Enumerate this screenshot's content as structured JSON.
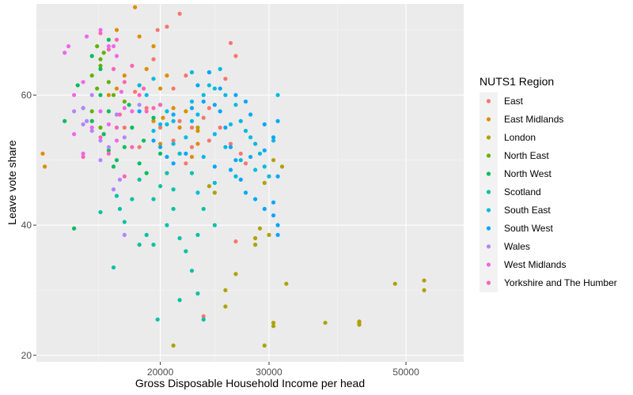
{
  "chart_data": {
    "type": "scatter",
    "xlabel": "Gross Disposable Household Income per head",
    "ylabel": "Leave vote share",
    "x_scale": "log",
    "xlim": [
      12600,
      62000
    ],
    "ylim": [
      19,
      74
    ],
    "x_ticks": [
      {
        "value": 20000,
        "label": "20000"
      },
      {
        "value": 30000,
        "label": "30000"
      },
      {
        "value": 50000,
        "label": "50000"
      }
    ],
    "y_ticks": [
      {
        "value": 20,
        "label": "20"
      },
      {
        "value": 40,
        "label": "40"
      },
      {
        "value": 60,
        "label": "60"
      }
    ],
    "grid": true,
    "legend_title": "NUTS1 Region",
    "legend_position": "right",
    "series": [
      {
        "name": "East",
        "color": "#F8766D",
        "points": [
          [
            19800,
            70.0
          ],
          [
            20500,
            70.5
          ],
          [
            21500,
            72.5
          ],
          [
            26000,
            68.0
          ],
          [
            26500,
            66.0
          ],
          [
            25500,
            62.5
          ],
          [
            22000,
            63.0
          ],
          [
            19500,
            65.5
          ],
          [
            21000,
            61.0
          ],
          [
            21500,
            56.0
          ],
          [
            22500,
            55.0
          ],
          [
            24000,
            58.0
          ],
          [
            25000,
            55.0
          ],
          [
            26000,
            52.5
          ],
          [
            27000,
            51.0
          ],
          [
            27500,
            49.5
          ],
          [
            24000,
            53.0
          ],
          [
            22500,
            52.0
          ],
          [
            21000,
            53.0
          ],
          [
            20000,
            55.0
          ],
          [
            19000,
            58.0
          ],
          [
            18200,
            60.5
          ],
          [
            23500,
            56.5
          ],
          [
            22000,
            49.5
          ],
          [
            18500,
            52.0
          ],
          [
            17500,
            55.0
          ],
          [
            23500,
            26.0
          ],
          [
            26500,
            37.5
          ]
        ]
      },
      {
        "name": "East Midlands",
        "color": "#DB8E00",
        "points": [
          [
            18100,
            75.5
          ],
          [
            18200,
            73.5
          ],
          [
            17000,
            70.0
          ],
          [
            18500,
            69.0
          ],
          [
            19500,
            67.5
          ],
          [
            19000,
            64.0
          ],
          [
            17500,
            63.0
          ],
          [
            16500,
            60.0
          ],
          [
            20000,
            61.0
          ],
          [
            20500,
            63.0
          ],
          [
            21000,
            58.0
          ],
          [
            20200,
            56.5
          ],
          [
            22000,
            57.5
          ],
          [
            21500,
            55.0
          ],
          [
            23000,
            54.5
          ],
          [
            18500,
            61.5
          ],
          [
            17000,
            61.0
          ],
          [
            12900,
            51.0
          ],
          [
            13000,
            49.0
          ],
          [
            19500,
            56.0
          ],
          [
            20000,
            52.5
          ],
          [
            21500,
            51.0
          ],
          [
            22500,
            50.5
          ],
          [
            23000,
            52.5
          ]
        ]
      },
      {
        "name": "London",
        "color": "#AEA200",
        "points": [
          [
            28500,
            37.0
          ],
          [
            29000,
            39.5
          ],
          [
            28500,
            38.0
          ],
          [
            30000,
            38.5
          ],
          [
            31500,
            49.0
          ],
          [
            30500,
            50.0
          ],
          [
            29500,
            46.5
          ],
          [
            24000,
            46.0
          ],
          [
            24500,
            45.0
          ],
          [
            25500,
            30.0
          ],
          [
            26500,
            32.5
          ],
          [
            25500,
            27.5
          ],
          [
            32000,
            31.0
          ],
          [
            30500,
            25.0
          ],
          [
            30500,
            24.5
          ],
          [
            29500,
            21.5
          ],
          [
            21000,
            21.5
          ],
          [
            37000,
            25.0
          ],
          [
            42000,
            25.0
          ],
          [
            42000,
            24.7
          ],
          [
            42000,
            25.2
          ],
          [
            48000,
            31.0
          ],
          [
            53500,
            31.5
          ],
          [
            53500,
            30.0
          ],
          [
            24000,
            63.5
          ],
          [
            23000,
            55.0
          ]
        ]
      },
      {
        "name": "North East",
        "color": "#64B200",
        "points": [
          [
            15800,
            67.5
          ],
          [
            16000,
            65.5
          ],
          [
            16200,
            66.5
          ],
          [
            15500,
            63.0
          ],
          [
            15800,
            61.0
          ],
          [
            16500,
            62.0
          ],
          [
            16800,
            60.0
          ],
          [
            17500,
            59.0
          ],
          [
            17000,
            57.0
          ],
          [
            16000,
            55.0
          ],
          [
            15500,
            57.5
          ],
          [
            16000,
            64.5
          ]
        ]
      },
      {
        "name": "North West",
        "color": "#00BD5C",
        "points": [
          [
            15500,
            66.0
          ],
          [
            16000,
            64.0
          ],
          [
            16500,
            68.5
          ],
          [
            15000,
            58.0
          ],
          [
            15500,
            56.0
          ],
          [
            16200,
            54.0
          ],
          [
            16500,
            51.5
          ],
          [
            17000,
            50.0
          ],
          [
            18000,
            55.0
          ],
          [
            17500,
            52.0
          ],
          [
            18500,
            49.5
          ],
          [
            19000,
            48.0
          ],
          [
            16800,
            49.0
          ],
          [
            14700,
            61.5
          ],
          [
            14000,
            56.0
          ],
          [
            14500,
            39.5
          ],
          [
            16500,
            57.5
          ],
          [
            17800,
            58.5
          ],
          [
            19500,
            56.5
          ],
          [
            20000,
            51.0
          ],
          [
            18800,
            53.0
          ],
          [
            16000,
            60.0
          ]
        ]
      },
      {
        "name": "Scotland",
        "color": "#00C1A7",
        "points": [
          [
            17000,
            44.5
          ],
          [
            17200,
            42.5
          ],
          [
            17500,
            40.5
          ],
          [
            18000,
            44.0
          ],
          [
            18500,
            47.0
          ],
          [
            19000,
            38.5
          ],
          [
            18500,
            37.0
          ],
          [
            19500,
            37.0
          ],
          [
            20500,
            40.0
          ],
          [
            21000,
            42.5
          ],
          [
            21500,
            38.0
          ],
          [
            22000,
            36.0
          ],
          [
            22500,
            33.0
          ],
          [
            19800,
            25.5
          ],
          [
            21500,
            28.5
          ],
          [
            23000,
            29.5
          ],
          [
            23500,
            25.5
          ],
          [
            16800,
            33.5
          ],
          [
            16000,
            42.0
          ],
          [
            20000,
            46.0
          ],
          [
            22500,
            48.0
          ],
          [
            23500,
            42.5
          ],
          [
            21000,
            45.5
          ],
          [
            19500,
            44.0
          ],
          [
            23000,
            38.5
          ],
          [
            24500,
            40.0
          ],
          [
            20500,
            48.0
          ]
        ]
      },
      {
        "name": "South East",
        "color": "#00BADE",
        "points": [
          [
            19500,
            54.5
          ],
          [
            20000,
            55.5
          ],
          [
            20500,
            57.5
          ],
          [
            21000,
            52.5
          ],
          [
            21500,
            51.0
          ],
          [
            22500,
            56.0
          ],
          [
            23000,
            57.0
          ],
          [
            22500,
            59.0
          ],
          [
            23500,
            60.0
          ],
          [
            24000,
            61.5
          ],
          [
            24500,
            61.0
          ],
          [
            25000,
            64.0
          ],
          [
            25500,
            60.0
          ],
          [
            26000,
            55.5
          ],
          [
            26500,
            58.5
          ],
          [
            27000,
            56.0
          ],
          [
            27500,
            54.5
          ],
          [
            28000,
            53.5
          ],
          [
            28500,
            52.5
          ],
          [
            29000,
            51.0
          ],
          [
            29500,
            49.0
          ],
          [
            30000,
            47.5
          ],
          [
            30500,
            53.0
          ],
          [
            31000,
            60.0
          ],
          [
            24500,
            54.0
          ],
          [
            23500,
            50.5
          ],
          [
            22000,
            53.5
          ],
          [
            21000,
            56.0
          ],
          [
            20000,
            58.5
          ],
          [
            19000,
            60.0
          ],
          [
            18500,
            61.5
          ],
          [
            19500,
            62.5
          ],
          [
            22500,
            63.5
          ],
          [
            25500,
            52.0
          ],
          [
            27000,
            50.0
          ],
          [
            28500,
            48.5
          ],
          [
            26500,
            47.5
          ],
          [
            24500,
            46.5
          ],
          [
            23000,
            45.0
          ],
          [
            20500,
            55.5
          ]
        ]
      },
      {
        "name": "South West",
        "color": "#00A6FF",
        "points": [
          [
            24000,
            63.5
          ],
          [
            24500,
            58.5
          ],
          [
            25000,
            57.5
          ],
          [
            25500,
            55.0
          ],
          [
            26000,
            52.0
          ],
          [
            26500,
            50.0
          ],
          [
            27000,
            47.0
          ],
          [
            27500,
            45.0
          ],
          [
            28500,
            44.0
          ],
          [
            29500,
            42.5
          ],
          [
            30500,
            41.5
          ],
          [
            31000,
            40.0
          ],
          [
            31000,
            38.5
          ],
          [
            31000,
            56.0
          ],
          [
            30500,
            53.5
          ],
          [
            29500,
            55.5
          ],
          [
            28000,
            57.0
          ],
          [
            27500,
            59.0
          ],
          [
            26500,
            60.0
          ],
          [
            25000,
            61.0
          ],
          [
            23500,
            59.0
          ],
          [
            22500,
            58.0
          ],
          [
            21000,
            57.0
          ],
          [
            28000,
            50.5
          ],
          [
            29500,
            51.5
          ],
          [
            31000,
            47.5
          ],
          [
            30500,
            43.5
          ],
          [
            26000,
            48.5
          ],
          [
            24500,
            49.0
          ],
          [
            22000,
            51.0
          ],
          [
            21000,
            49.5
          ],
          [
            20000,
            52.0
          ],
          [
            20500,
            50.5
          ],
          [
            19500,
            53.0
          ],
          [
            18500,
            57.5
          ],
          [
            23000,
            61.5
          ]
        ]
      },
      {
        "name": "Wales",
        "color": "#B385FF",
        "points": [
          [
            15000,
            58.0
          ],
          [
            15200,
            56.0
          ],
          [
            15500,
            54.5
          ],
          [
            16000,
            53.0
          ],
          [
            16500,
            52.0
          ],
          [
            17000,
            57.0
          ],
          [
            15500,
            60.0
          ],
          [
            16800,
            45.5
          ],
          [
            17500,
            53.5
          ],
          [
            18500,
            58.5
          ],
          [
            17200,
            47.0
          ],
          [
            16000,
            50.0
          ],
          [
            15000,
            55.5
          ],
          [
            14500,
            57.5
          ],
          [
            17500,
            38.5
          ]
        ]
      },
      {
        "name": "West Midlands",
        "color": "#EF67EB",
        "points": [
          [
            14200,
            67.5
          ],
          [
            15200,
            69.0
          ],
          [
            16000,
            70.0
          ],
          [
            16500,
            67.5
          ],
          [
            17000,
            66.0
          ],
          [
            15000,
            62.0
          ],
          [
            14500,
            60.0
          ],
          [
            14500,
            54.0
          ],
          [
            15000,
            51.0
          ],
          [
            15500,
            55.0
          ],
          [
            16000,
            57.5
          ],
          [
            16500,
            55.5
          ],
          [
            17000,
            53.0
          ],
          [
            17500,
            58.0
          ],
          [
            18000,
            57.5
          ],
          [
            14000,
            66.5
          ],
          [
            16800,
            67.5
          ],
          [
            17300,
            60.5
          ]
        ]
      },
      {
        "name": "Yorkshire and The Humber",
        "color": "#FF63B6",
        "points": [
          [
            16000,
            69.5
          ],
          [
            16500,
            67.0
          ],
          [
            17000,
            68.5
          ],
          [
            16800,
            64.0
          ],
          [
            17500,
            62.0
          ],
          [
            18000,
            64.5
          ],
          [
            18500,
            60.0
          ],
          [
            19000,
            57.5
          ],
          [
            19500,
            58.0
          ],
          [
            17000,
            55.0
          ],
          [
            16500,
            51.0
          ],
          [
            18000,
            52.0
          ],
          [
            17500,
            47.5
          ],
          [
            16000,
            53.5
          ],
          [
            15000,
            50.5
          ],
          [
            18800,
            61.0
          ],
          [
            20000,
            58.5
          ],
          [
            17200,
            57.0
          ]
        ]
      }
    ]
  }
}
